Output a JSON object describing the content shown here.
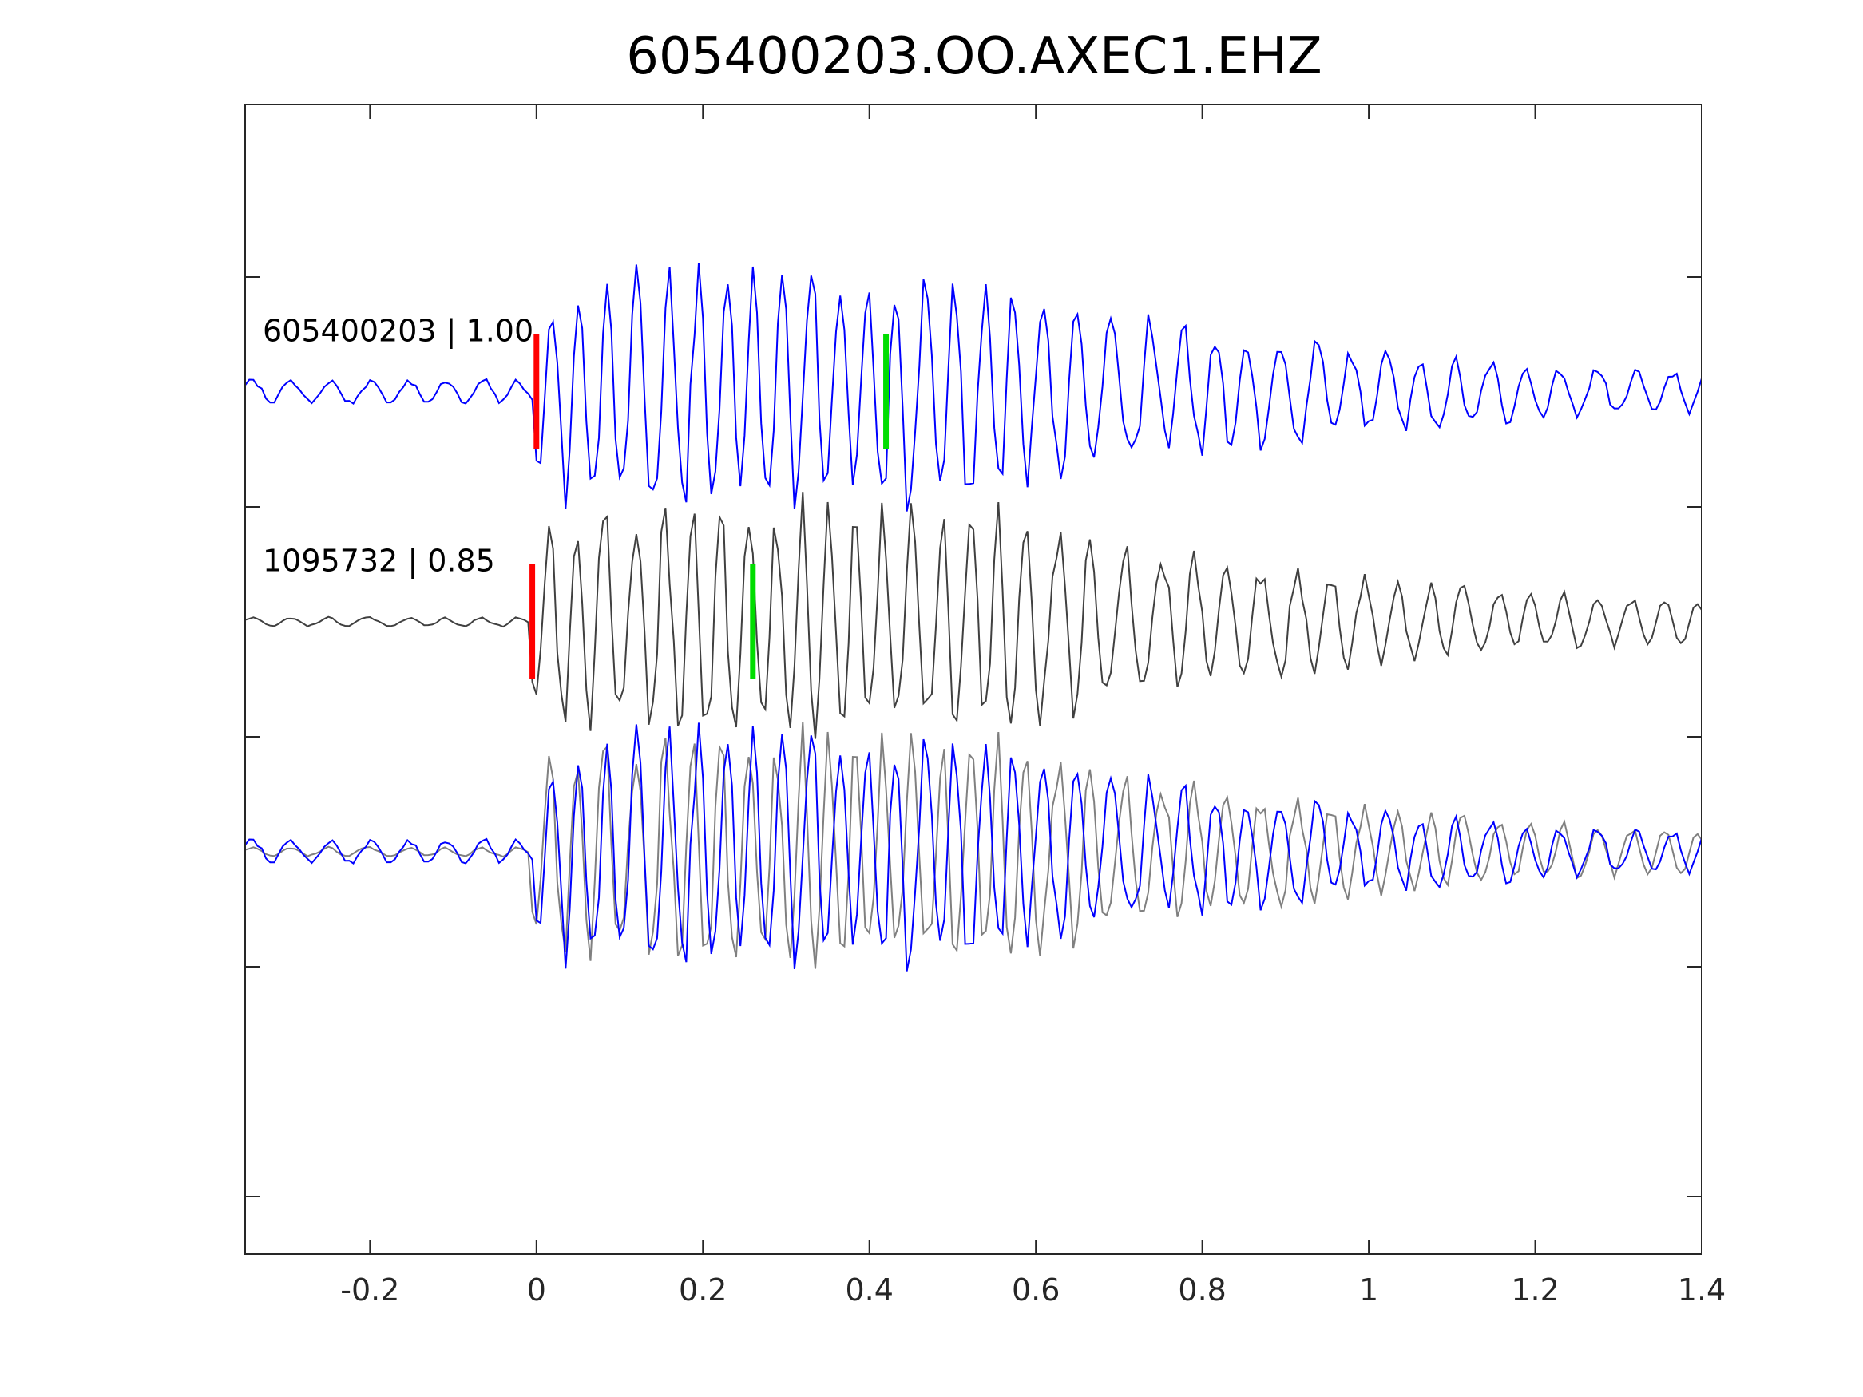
{
  "chart_data": {
    "type": "line",
    "title": "605400203.OO.AXEC1.EHZ",
    "xlabel": "",
    "ylabel": "",
    "xlim": [
      -0.35,
      1.4
    ],
    "xticks": [
      -0.2,
      0,
      0.2,
      0.4,
      0.6,
      0.8,
      1,
      1.2,
      1.4
    ],
    "xtick_labels": [
      "-0.2",
      "0",
      "0.2",
      "0.4",
      "0.6",
      "0.8",
      "1",
      "1.2",
      "1.4"
    ],
    "ylim": [
      -4.25,
      0.75
    ],
    "yticks": [
      -4,
      -3,
      -2,
      -1,
      0
    ],
    "grid": false,
    "colors": {
      "template": "#0000ff",
      "match": "#404040",
      "match_overlay": "#808080",
      "p_pick": "#ff0000",
      "s_pick": "#00dd00"
    },
    "traces": [
      {
        "label": "605400203 | 1.00",
        "offset": -0.5,
        "color": "#0000ff",
        "p_pick": 0.0,
        "s_pick": 0.42,
        "pre_noise_amp": 0.05,
        "main_amp": 0.5
      },
      {
        "label": "1095732 | 0.85",
        "offset": -1.5,
        "color": "#404040",
        "p_pick": -0.005,
        "s_pick": 0.26,
        "pre_noise_amp": 0.02,
        "main_amp": 0.5
      }
    ],
    "overlay": {
      "offset": -2.5,
      "series": [
        "605400203",
        "1095732"
      ]
    }
  }
}
